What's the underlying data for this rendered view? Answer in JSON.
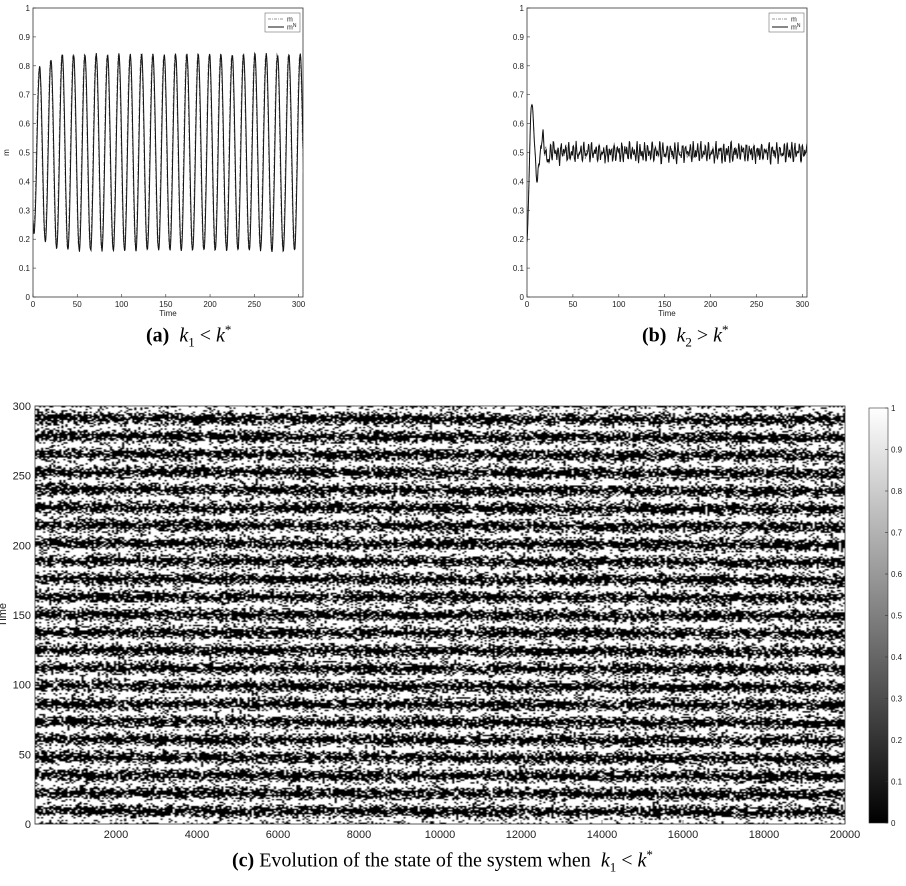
{
  "captions": {
    "a": {
      "tag": "(a)",
      "k": "k",
      "sub": "1",
      "op": "<",
      "kstar": "k",
      "sup": "*"
    },
    "b": {
      "tag": "(b)",
      "k": "k",
      "sub": "2",
      "op": ">",
      "kstar": "k",
      "sup": "*"
    },
    "c": {
      "tag": "(c)",
      "text": "Evolution of the state of the system when",
      "k": "k",
      "sub": "1",
      "op": "<",
      "kstar": "k",
      "sup": "*"
    }
  },
  "chart_data": [
    {
      "id": "a",
      "type": "line",
      "title": "",
      "xlabel": "Time",
      "ylabel": "m",
      "xlim": [
        0,
        305
      ],
      "ylim": [
        0,
        1
      ],
      "xticks": [
        0,
        50,
        100,
        150,
        200,
        250,
        300
      ],
      "yticks": [
        0,
        0.1,
        0.2,
        0.3,
        0.4,
        0.5,
        0.6,
        0.7,
        0.8,
        0.9,
        1
      ],
      "legend": "top-right",
      "series": [
        {
          "name": "m",
          "style": "dash-dot",
          "color": "#7a7a7a",
          "pattern": {
            "kind": "oscillation",
            "period": 12.8,
            "min": 0.17,
            "max": 0.84,
            "start": 0.25,
            "phase_lag": 0.6
          }
        },
        {
          "name": "m^N",
          "style": "solid",
          "color": "#111111",
          "pattern": {
            "kind": "oscillation",
            "period": 12.8,
            "min": 0.16,
            "max": 0.84,
            "start": 0.26,
            "end": 0.67
          }
        }
      ]
    },
    {
      "id": "b",
      "type": "line",
      "title": "",
      "xlabel": "Time",
      "ylabel": "",
      "xlim": [
        0,
        305
      ],
      "ylim": [
        0,
        1
      ],
      "xticks": [
        0,
        50,
        100,
        150,
        200,
        250,
        300
      ],
      "yticks": [
        0,
        0.1,
        0.2,
        0.3,
        0.4,
        0.5,
        0.6,
        0.7,
        0.8,
        0.9,
        1
      ],
      "legend": "top-right",
      "series": [
        {
          "name": "m",
          "style": "dash-dot",
          "color": "#7a7a7a",
          "pattern": {
            "kind": "damped",
            "start": 0.19,
            "first_peak": 0.71,
            "first_trough": 0.34,
            "settle": 0.5,
            "noise": 0.03
          }
        },
        {
          "name": "m^N",
          "style": "solid",
          "color": "#111111",
          "pattern": {
            "kind": "damped",
            "start": 0.19,
            "first_peak": 0.71,
            "first_trough": 0.34,
            "settle": 0.5,
            "noise": 0.035
          }
        }
      ]
    },
    {
      "id": "c",
      "type": "heatmap",
      "title": "",
      "xlabel": "",
      "ylabel": "Time",
      "xlim": [
        0,
        20000
      ],
      "ylim": [
        0,
        300
      ],
      "xticks": [
        2000,
        4000,
        6000,
        8000,
        10000,
        12000,
        14000,
        16000,
        18000,
        20000
      ],
      "yticks": [
        0,
        50,
        100,
        150,
        200,
        250,
        300
      ],
      "colorbar": {
        "min": 0,
        "max": 1,
        "ticks": [
          0,
          0.1,
          0.2,
          0.3,
          0.4,
          0.5,
          0.6,
          0.7,
          0.8,
          0.9,
          1
        ],
        "tick_labels": [
          "0",
          "0.1",
          "0.2",
          "0.3",
          "0.4",
          "0.5",
          "0.6",
          "0.7",
          "0.8",
          "0.9",
          "1"
        ],
        "colormap": "gray"
      },
      "pattern": {
        "kind": "binary-stripes",
        "period": 12.8,
        "noise": 0.3
      }
    }
  ]
}
